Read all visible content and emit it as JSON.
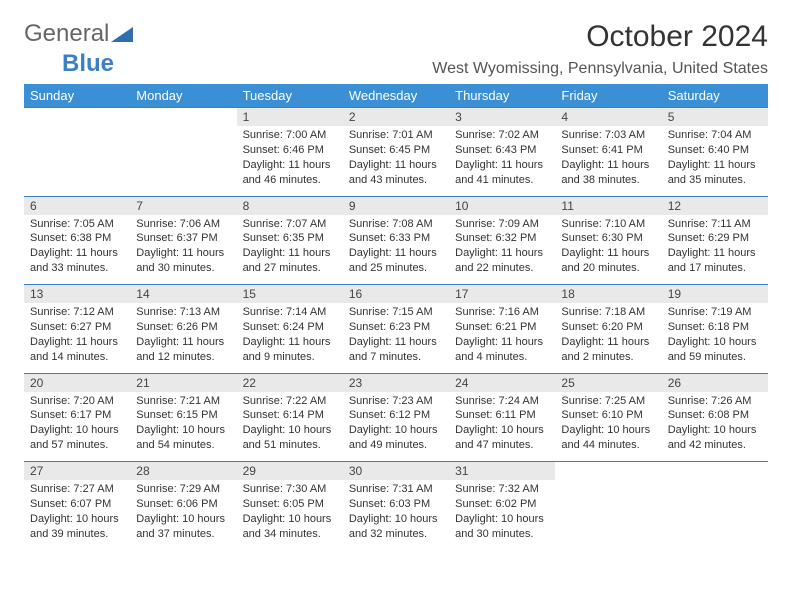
{
  "brand": {
    "part1": "General",
    "part2": "Blue"
  },
  "title": "October 2024",
  "location": "West Wyomissing, Pennsylvania, United States",
  "colors": {
    "header_bg": "#3b8fd4",
    "header_fg": "#ffffff",
    "daynum_bg": "#e9e9e9",
    "border": "#3b7fc4",
    "text": "#333333"
  },
  "day_headers": [
    "Sunday",
    "Monday",
    "Tuesday",
    "Wednesday",
    "Thursday",
    "Friday",
    "Saturday"
  ],
  "weeks": [
    [
      null,
      null,
      {
        "n": "1",
        "sr": "Sunrise: 7:00 AM",
        "ss": "Sunset: 6:46 PM",
        "d1": "Daylight: 11 hours",
        "d2": "and 46 minutes."
      },
      {
        "n": "2",
        "sr": "Sunrise: 7:01 AM",
        "ss": "Sunset: 6:45 PM",
        "d1": "Daylight: 11 hours",
        "d2": "and 43 minutes."
      },
      {
        "n": "3",
        "sr": "Sunrise: 7:02 AM",
        "ss": "Sunset: 6:43 PM",
        "d1": "Daylight: 11 hours",
        "d2": "and 41 minutes."
      },
      {
        "n": "4",
        "sr": "Sunrise: 7:03 AM",
        "ss": "Sunset: 6:41 PM",
        "d1": "Daylight: 11 hours",
        "d2": "and 38 minutes."
      },
      {
        "n": "5",
        "sr": "Sunrise: 7:04 AM",
        "ss": "Sunset: 6:40 PM",
        "d1": "Daylight: 11 hours",
        "d2": "and 35 minutes."
      }
    ],
    [
      {
        "n": "6",
        "sr": "Sunrise: 7:05 AM",
        "ss": "Sunset: 6:38 PM",
        "d1": "Daylight: 11 hours",
        "d2": "and 33 minutes."
      },
      {
        "n": "7",
        "sr": "Sunrise: 7:06 AM",
        "ss": "Sunset: 6:37 PM",
        "d1": "Daylight: 11 hours",
        "d2": "and 30 minutes."
      },
      {
        "n": "8",
        "sr": "Sunrise: 7:07 AM",
        "ss": "Sunset: 6:35 PM",
        "d1": "Daylight: 11 hours",
        "d2": "and 27 minutes."
      },
      {
        "n": "9",
        "sr": "Sunrise: 7:08 AM",
        "ss": "Sunset: 6:33 PM",
        "d1": "Daylight: 11 hours",
        "d2": "and 25 minutes."
      },
      {
        "n": "10",
        "sr": "Sunrise: 7:09 AM",
        "ss": "Sunset: 6:32 PM",
        "d1": "Daylight: 11 hours",
        "d2": "and 22 minutes."
      },
      {
        "n": "11",
        "sr": "Sunrise: 7:10 AM",
        "ss": "Sunset: 6:30 PM",
        "d1": "Daylight: 11 hours",
        "d2": "and 20 minutes."
      },
      {
        "n": "12",
        "sr": "Sunrise: 7:11 AM",
        "ss": "Sunset: 6:29 PM",
        "d1": "Daylight: 11 hours",
        "d2": "and 17 minutes."
      }
    ],
    [
      {
        "n": "13",
        "sr": "Sunrise: 7:12 AM",
        "ss": "Sunset: 6:27 PM",
        "d1": "Daylight: 11 hours",
        "d2": "and 14 minutes."
      },
      {
        "n": "14",
        "sr": "Sunrise: 7:13 AM",
        "ss": "Sunset: 6:26 PM",
        "d1": "Daylight: 11 hours",
        "d2": "and 12 minutes."
      },
      {
        "n": "15",
        "sr": "Sunrise: 7:14 AM",
        "ss": "Sunset: 6:24 PM",
        "d1": "Daylight: 11 hours",
        "d2": "and 9 minutes."
      },
      {
        "n": "16",
        "sr": "Sunrise: 7:15 AM",
        "ss": "Sunset: 6:23 PM",
        "d1": "Daylight: 11 hours",
        "d2": "and 7 minutes."
      },
      {
        "n": "17",
        "sr": "Sunrise: 7:16 AM",
        "ss": "Sunset: 6:21 PM",
        "d1": "Daylight: 11 hours",
        "d2": "and 4 minutes."
      },
      {
        "n": "18",
        "sr": "Sunrise: 7:18 AM",
        "ss": "Sunset: 6:20 PM",
        "d1": "Daylight: 11 hours",
        "d2": "and 2 minutes."
      },
      {
        "n": "19",
        "sr": "Sunrise: 7:19 AM",
        "ss": "Sunset: 6:18 PM",
        "d1": "Daylight: 10 hours",
        "d2": "and 59 minutes."
      }
    ],
    [
      {
        "n": "20",
        "sr": "Sunrise: 7:20 AM",
        "ss": "Sunset: 6:17 PM",
        "d1": "Daylight: 10 hours",
        "d2": "and 57 minutes."
      },
      {
        "n": "21",
        "sr": "Sunrise: 7:21 AM",
        "ss": "Sunset: 6:15 PM",
        "d1": "Daylight: 10 hours",
        "d2": "and 54 minutes."
      },
      {
        "n": "22",
        "sr": "Sunrise: 7:22 AM",
        "ss": "Sunset: 6:14 PM",
        "d1": "Daylight: 10 hours",
        "d2": "and 51 minutes."
      },
      {
        "n": "23",
        "sr": "Sunrise: 7:23 AM",
        "ss": "Sunset: 6:12 PM",
        "d1": "Daylight: 10 hours",
        "d2": "and 49 minutes."
      },
      {
        "n": "24",
        "sr": "Sunrise: 7:24 AM",
        "ss": "Sunset: 6:11 PM",
        "d1": "Daylight: 10 hours",
        "d2": "and 47 minutes."
      },
      {
        "n": "25",
        "sr": "Sunrise: 7:25 AM",
        "ss": "Sunset: 6:10 PM",
        "d1": "Daylight: 10 hours",
        "d2": "and 44 minutes."
      },
      {
        "n": "26",
        "sr": "Sunrise: 7:26 AM",
        "ss": "Sunset: 6:08 PM",
        "d1": "Daylight: 10 hours",
        "d2": "and 42 minutes."
      }
    ],
    [
      {
        "n": "27",
        "sr": "Sunrise: 7:27 AM",
        "ss": "Sunset: 6:07 PM",
        "d1": "Daylight: 10 hours",
        "d2": "and 39 minutes."
      },
      {
        "n": "28",
        "sr": "Sunrise: 7:29 AM",
        "ss": "Sunset: 6:06 PM",
        "d1": "Daylight: 10 hours",
        "d2": "and 37 minutes."
      },
      {
        "n": "29",
        "sr": "Sunrise: 7:30 AM",
        "ss": "Sunset: 6:05 PM",
        "d1": "Daylight: 10 hours",
        "d2": "and 34 minutes."
      },
      {
        "n": "30",
        "sr": "Sunrise: 7:31 AM",
        "ss": "Sunset: 6:03 PM",
        "d1": "Daylight: 10 hours",
        "d2": "and 32 minutes."
      },
      {
        "n": "31",
        "sr": "Sunrise: 7:32 AM",
        "ss": "Sunset: 6:02 PM",
        "d1": "Daylight: 10 hours",
        "d2": "and 30 minutes."
      },
      null,
      null
    ]
  ]
}
